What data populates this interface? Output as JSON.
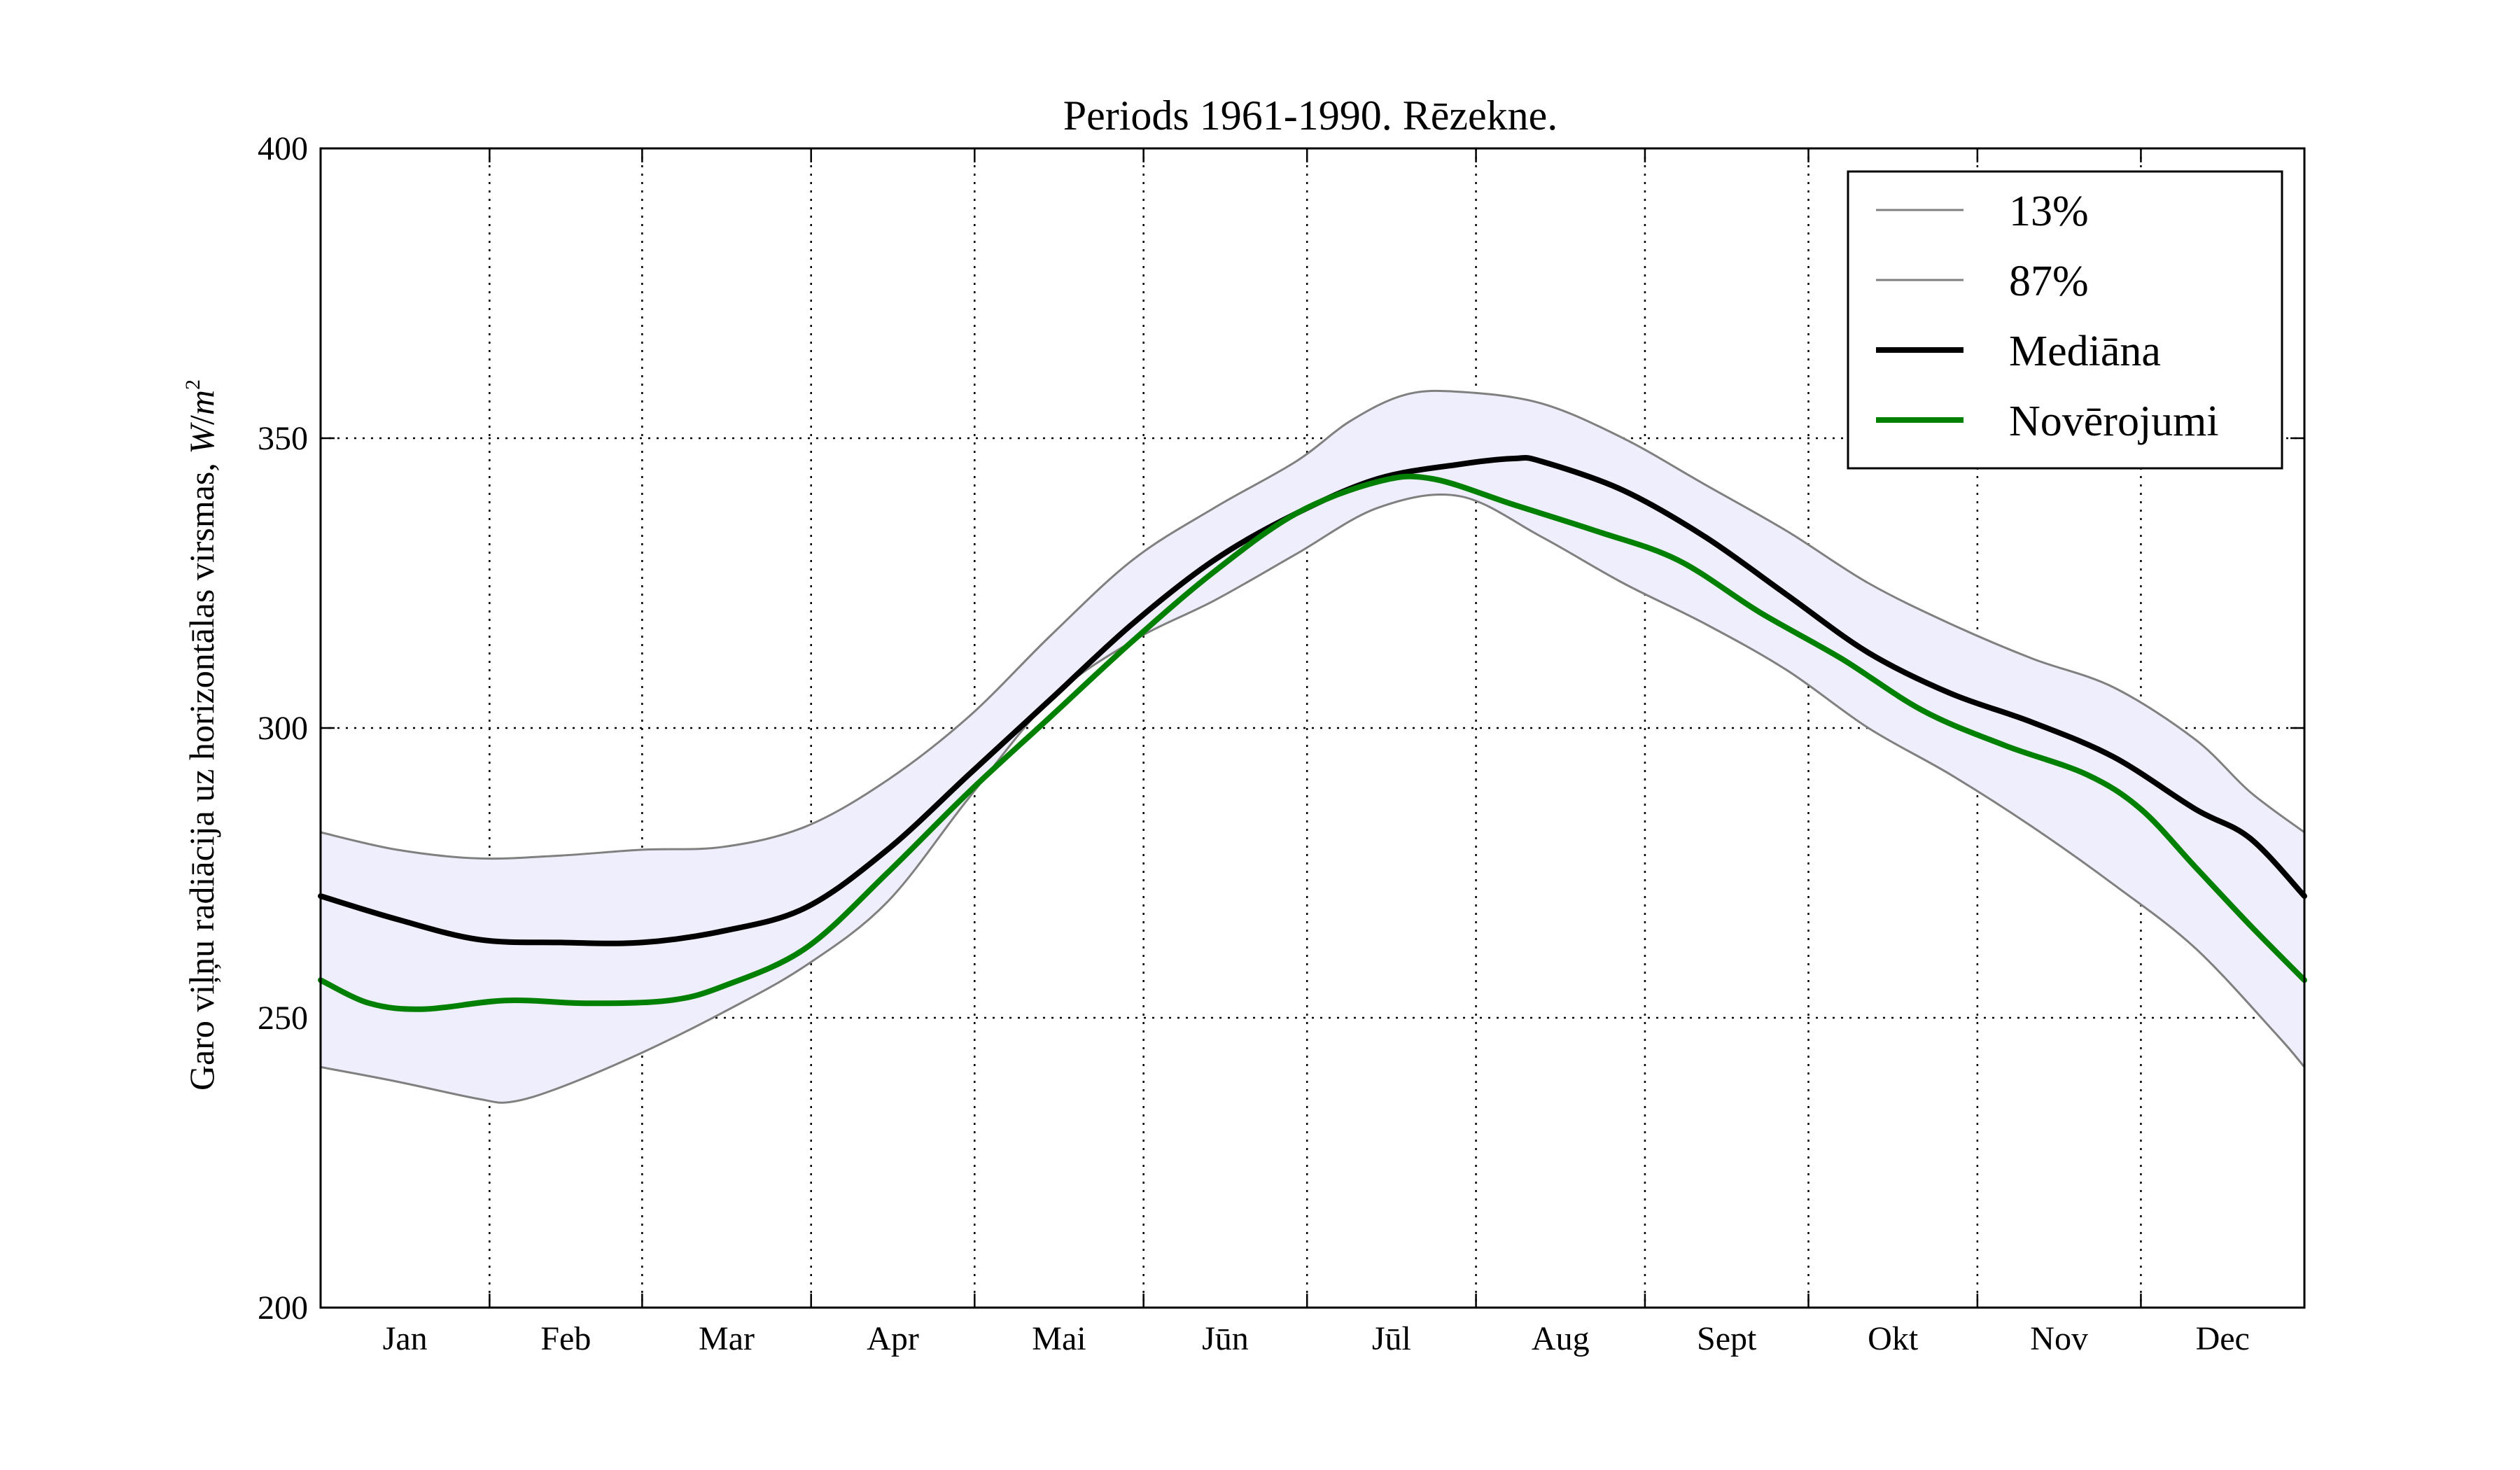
{
  "chart_data": {
    "type": "line",
    "title": "Periods 1961-1990. Rēzekne.",
    "ylabel_text": "Garo viļņu radiācija uz horizontālas virsmas, ",
    "ylabel_unit_w": "W",
    "ylabel_unit_slash": "/",
    "ylabel_unit_m": "m",
    "ylabel_unit_exp": "2",
    "xlabel": "",
    "categories": [
      "Jan",
      "Feb",
      "Mar",
      "Apr",
      "Mai",
      "Jūn",
      "Jūl",
      "Aug",
      "Sept",
      "Okt",
      "Nov",
      "Dec"
    ],
    "month_days": [
      31,
      28,
      31,
      30,
      31,
      30,
      31,
      31,
      30,
      31,
      30,
      31
    ],
    "ylim": [
      200,
      400
    ],
    "yticks": [
      "200",
      "250",
      "300",
      "350",
      "400"
    ],
    "grid": true,
    "legend_position": "top-right",
    "band_color": "#eeeefc",
    "series": [
      {
        "name": "13%",
        "color": "#808080",
        "style": "thin",
        "values": [
          [
            1,
            241.5
          ],
          [
            15,
            239
          ],
          [
            30,
            236
          ],
          [
            36,
            235.5
          ],
          [
            45,
            238
          ],
          [
            60,
            244
          ],
          [
            75,
            251
          ],
          [
            90,
            259
          ],
          [
            105,
            270
          ],
          [
            120,
            288
          ],
          [
            135,
            305
          ],
          [
            150,
            315
          ],
          [
            165,
            322
          ],
          [
            180,
            330
          ],
          [
            195,
            338
          ],
          [
            210,
            340
          ],
          [
            225,
            333
          ],
          [
            240,
            325
          ],
          [
            255,
            318
          ],
          [
            270,
            310
          ],
          [
            285,
            300
          ],
          [
            300,
            292
          ],
          [
            315,
            283
          ],
          [
            330,
            273
          ],
          [
            345,
            262
          ],
          [
            360,
            247
          ],
          [
            365,
            241.5
          ]
        ]
      },
      {
        "name": "87%",
        "color": "#808080",
        "style": "thin",
        "values": [
          [
            1,
            282
          ],
          [
            15,
            279
          ],
          [
            30,
            277.5
          ],
          [
            45,
            278
          ],
          [
            60,
            279
          ],
          [
            75,
            279.5
          ],
          [
            90,
            283
          ],
          [
            105,
            291
          ],
          [
            120,
            302
          ],
          [
            135,
            316
          ],
          [
            150,
            329
          ],
          [
            165,
            338
          ],
          [
            180,
            346
          ],
          [
            190,
            353
          ],
          [
            200,
            357.5
          ],
          [
            210,
            358
          ],
          [
            225,
            356
          ],
          [
            240,
            350
          ],
          [
            255,
            342
          ],
          [
            270,
            334
          ],
          [
            285,
            325
          ],
          [
            300,
            318
          ],
          [
            315,
            312
          ],
          [
            330,
            307
          ],
          [
            345,
            298
          ],
          [
            355,
            289
          ],
          [
            365,
            282
          ]
        ]
      },
      {
        "name": "Mediāna",
        "color": "#000000",
        "style": "thick",
        "values": [
          [
            1,
            271
          ],
          [
            15,
            267
          ],
          [
            30,
            263.5
          ],
          [
            45,
            263
          ],
          [
            60,
            263
          ],
          [
            75,
            265
          ],
          [
            90,
            269
          ],
          [
            105,
            279
          ],
          [
            120,
            292
          ],
          [
            135,
            305
          ],
          [
            150,
            318
          ],
          [
            165,
            329
          ],
          [
            180,
            337
          ],
          [
            195,
            343
          ],
          [
            210,
            345.5
          ],
          [
            220,
            346.5
          ],
          [
            225,
            346
          ],
          [
            240,
            341
          ],
          [
            255,
            333
          ],
          [
            270,
            323
          ],
          [
            285,
            313
          ],
          [
            300,
            306
          ],
          [
            315,
            301
          ],
          [
            330,
            295
          ],
          [
            345,
            286
          ],
          [
            355,
            281
          ],
          [
            365,
            271
          ]
        ]
      },
      {
        "name": "Novērojumi",
        "color": "#008000",
        "style": "thick",
        "values": [
          [
            1,
            256.5
          ],
          [
            10,
            252.5
          ],
          [
            20,
            251.5
          ],
          [
            35,
            253
          ],
          [
            50,
            252.5
          ],
          [
            65,
            253
          ],
          [
            75,
            255.5
          ],
          [
            90,
            262
          ],
          [
            105,
            275
          ],
          [
            120,
            289
          ],
          [
            135,
            302
          ],
          [
            150,
            315
          ],
          [
            165,
            327
          ],
          [
            180,
            337
          ],
          [
            195,
            342.5
          ],
          [
            205,
            343
          ],
          [
            220,
            338.5
          ],
          [
            235,
            334
          ],
          [
            250,
            329
          ],
          [
            265,
            320
          ],
          [
            280,
            312
          ],
          [
            295,
            303
          ],
          [
            310,
            297
          ],
          [
            325,
            292
          ],
          [
            335,
            286
          ],
          [
            345,
            276
          ],
          [
            355,
            266
          ],
          [
            365,
            256.5
          ]
        ]
      }
    ]
  }
}
